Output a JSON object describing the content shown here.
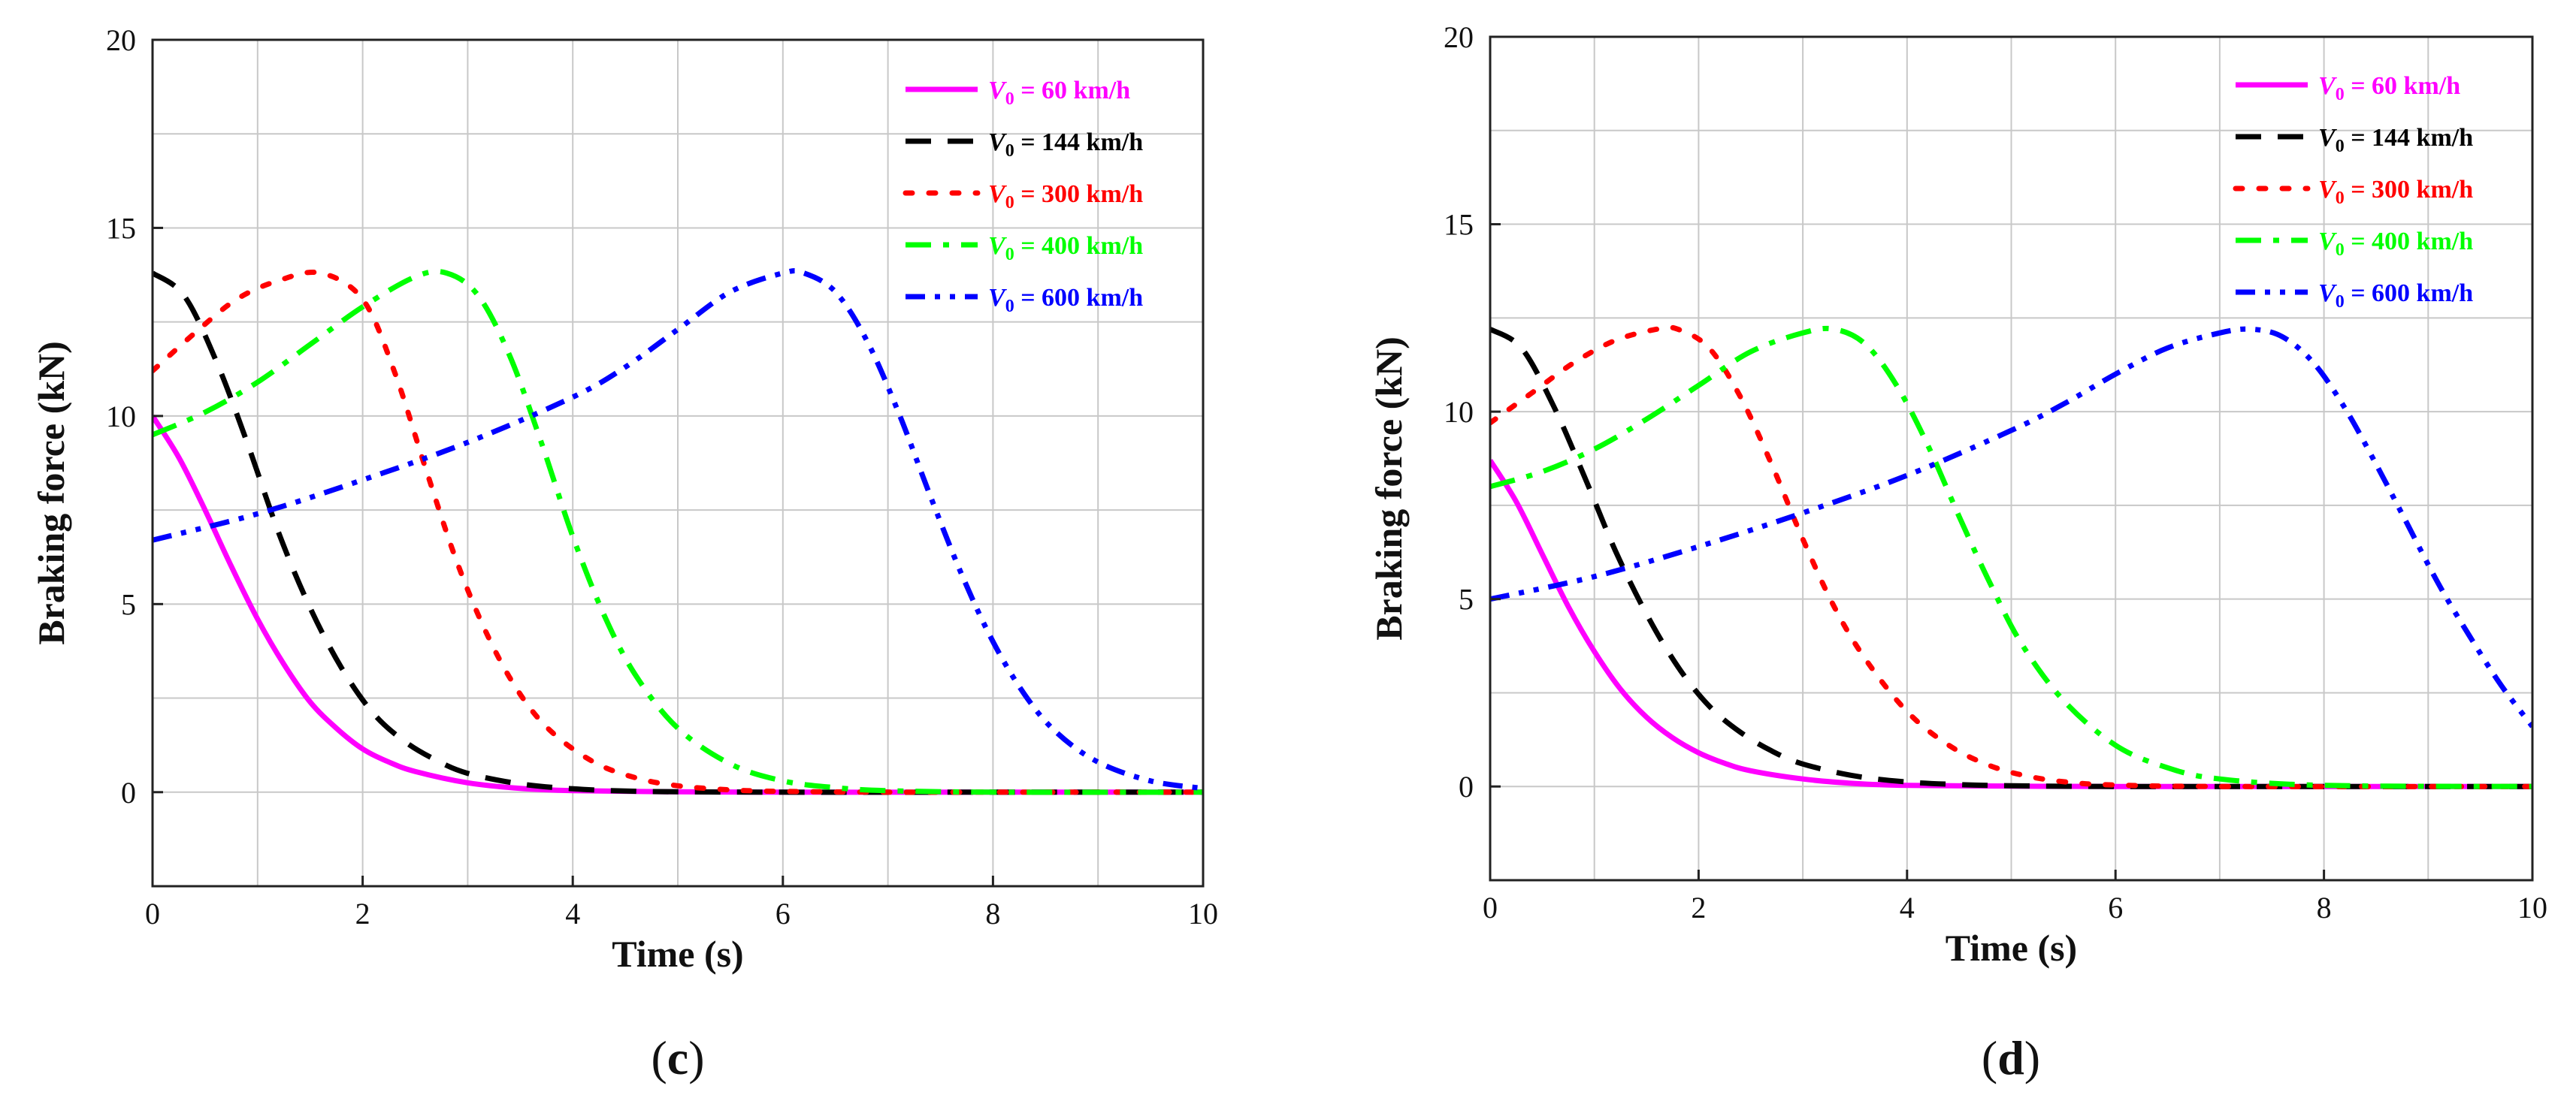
{
  "chart_data": [
    {
      "type": "line",
      "panel_label": "(c)",
      "xlabel": "Time (s)",
      "ylabel": "Braking force (kN)",
      "xlim": [
        0,
        10
      ],
      "ylim": [
        -2.5,
        20
      ],
      "xticks": [
        0,
        2,
        4,
        6,
        8,
        10
      ],
      "yticks": [
        0,
        5,
        10,
        15,
        20
      ],
      "grid": true,
      "legend_position": "top-right",
      "series": [
        {
          "name": "V0 = 60 km/h",
          "v_sym": "V",
          "v_sub": "0",
          "v_rest": " = 60 km/h",
          "color": "#ff00ff",
          "dash": "solid",
          "x": [
            0,
            0.25,
            0.5,
            0.75,
            1.0,
            1.25,
            1.5,
            1.75,
            2.0,
            2.25,
            2.5,
            3.0,
            3.5,
            4.0,
            5.0,
            6.0,
            8.0,
            10.0
          ],
          "y": [
            10.0,
            8.9,
            7.5,
            6.0,
            4.6,
            3.4,
            2.4,
            1.7,
            1.15,
            0.8,
            0.55,
            0.25,
            0.1,
            0.04,
            0.01,
            0,
            0,
            0
          ]
        },
        {
          "name": "V0 = 144 km/h",
          "v_sym": "V",
          "v_sub": "0",
          "v_rest": " = 144 km/h",
          "color": "#000000",
          "dash": "dash",
          "x": [
            0,
            0.3,
            0.6,
            0.9,
            1.2,
            1.5,
            1.8,
            2.1,
            2.4,
            2.7,
            3.0,
            3.5,
            4.0,
            4.5,
            5.0,
            6.0,
            8.0,
            10.0
          ],
          "y": [
            13.8,
            13.2,
            11.5,
            9.3,
            6.9,
            4.9,
            3.3,
            2.1,
            1.35,
            0.85,
            0.5,
            0.22,
            0.09,
            0.03,
            0.01,
            0,
            0,
            0
          ]
        },
        {
          "name": "V0 = 300 km/h",
          "v_sym": "V",
          "v_sub": "0",
          "v_rest": " = 300 km/h",
          "color": "#ff0000",
          "dash": "dot",
          "x": [
            0,
            0.4,
            0.8,
            1.2,
            1.6,
            2.0,
            2.3,
            2.6,
            2.9,
            3.2,
            3.5,
            3.8,
            4.2,
            4.6,
            5.0,
            5.5,
            6.0,
            7.0,
            8.0,
            10.0
          ],
          "y": [
            11.2,
            12.2,
            13.1,
            13.6,
            13.8,
            13.1,
            11.2,
            8.6,
            6.1,
            4.1,
            2.6,
            1.6,
            0.8,
            0.38,
            0.17,
            0.06,
            0.02,
            0,
            0,
            0
          ]
        },
        {
          "name": "V0 = 400 km/h",
          "v_sym": "V",
          "v_sub": "0",
          "v_rest": " = 400 km/h",
          "color": "#00ff00",
          "dash": "dashdot",
          "x": [
            0,
            0.5,
            1.0,
            1.5,
            2.0,
            2.5,
            2.8,
            3.1,
            3.4,
            3.7,
            4.0,
            4.3,
            4.6,
            5.0,
            5.5,
            6.0,
            6.5,
            7.0,
            8.0,
            10.0
          ],
          "y": [
            9.5,
            10.1,
            10.9,
            11.9,
            12.9,
            13.7,
            13.8,
            13.2,
            11.6,
            9.3,
            6.8,
            4.7,
            3.1,
            1.7,
            0.75,
            0.3,
            0.12,
            0.04,
            0,
            0
          ]
        },
        {
          "name": "V0 = 600 km/h",
          "v_sym": "V",
          "v_sub": "0",
          "v_rest": " = 600 km/h",
          "color": "#0000ff",
          "dash": "dashdotdot",
          "x": [
            0,
            1.0,
            2.0,
            3.0,
            4.0,
            4.5,
            5.0,
            5.5,
            6.0,
            6.2,
            6.5,
            6.8,
            7.1,
            7.4,
            7.7,
            8.0,
            8.3,
            8.6,
            9.0,
            9.5,
            10.0
          ],
          "y": [
            6.7,
            7.4,
            8.3,
            9.3,
            10.5,
            11.3,
            12.3,
            13.3,
            13.8,
            13.8,
            13.3,
            12.0,
            10.1,
            7.9,
            5.8,
            4.0,
            2.6,
            1.6,
            0.8,
            0.3,
            0.1
          ]
        }
      ]
    },
    {
      "type": "line",
      "panel_label": "(d)",
      "xlabel": "Time (s)",
      "ylabel": "Braking force (kN)",
      "xlim": [
        0,
        10
      ],
      "ylim": [
        -2.5,
        20
      ],
      "xticks": [
        0,
        2,
        4,
        6,
        8,
        10
      ],
      "yticks": [
        0,
        5,
        10,
        15,
        20
      ],
      "grid": true,
      "legend_position": "top-right",
      "series": [
        {
          "name": "V0 = 60 km/h",
          "v_sym": "V",
          "v_sub": "0",
          "v_rest": " = 60 km/h",
          "color": "#ff00ff",
          "dash": "solid",
          "x": [
            0,
            0.25,
            0.5,
            0.75,
            1.0,
            1.25,
            1.5,
            1.75,
            2.0,
            2.25,
            2.5,
            3.0,
            3.5,
            4.0,
            5.0,
            6.0,
            8.0,
            10.0
          ],
          "y": [
            8.7,
            7.6,
            6.2,
            4.8,
            3.6,
            2.6,
            1.85,
            1.3,
            0.9,
            0.62,
            0.42,
            0.2,
            0.08,
            0.03,
            0.01,
            0,
            0,
            0
          ]
        },
        {
          "name": "V0 = 144 km/h",
          "v_sym": "V",
          "v_sub": "0",
          "v_rest": " = 144 km/h",
          "color": "#000000",
          "dash": "dash",
          "x": [
            0,
            0.3,
            0.6,
            0.9,
            1.2,
            1.5,
            1.8,
            2.1,
            2.4,
            2.7,
            3.0,
            3.5,
            4.0,
            4.5,
            5.0,
            6.0,
            8.0,
            10.0
          ],
          "y": [
            12.2,
            11.7,
            10.2,
            8.3,
            6.3,
            4.6,
            3.2,
            2.15,
            1.45,
            0.95,
            0.6,
            0.28,
            0.12,
            0.05,
            0.02,
            0,
            0,
            0
          ]
        },
        {
          "name": "V0 = 300 km/h",
          "v_sym": "V",
          "v_sub": "0",
          "v_rest": " = 300 km/h",
          "color": "#ff0000",
          "dash": "dot",
          "x": [
            0,
            0.4,
            0.8,
            1.2,
            1.6,
            1.8,
            2.1,
            2.4,
            2.7,
            3.0,
            3.3,
            3.6,
            4.0,
            4.4,
            4.8,
            5.2,
            5.6,
            6.0,
            7.0,
            10.0
          ],
          "y": [
            9.7,
            10.5,
            11.3,
            11.9,
            12.2,
            12.2,
            11.7,
            10.4,
            8.6,
            6.6,
            4.8,
            3.4,
            2.0,
            1.1,
            0.55,
            0.25,
            0.1,
            0.04,
            0,
            0
          ]
        },
        {
          "name": "V0 = 400 km/h",
          "v_sym": "V",
          "v_sub": "0",
          "v_rest": " = 400 km/h",
          "color": "#00ff00",
          "dash": "dashdot",
          "x": [
            0,
            0.5,
            1.0,
            1.5,
            2.0,
            2.5,
            3.0,
            3.3,
            3.6,
            3.9,
            4.2,
            4.5,
            4.8,
            5.1,
            5.5,
            6.0,
            6.5,
            7.0,
            8.0,
            10.0
          ],
          "y": [
            8.0,
            8.4,
            9.0,
            9.8,
            10.7,
            11.6,
            12.1,
            12.2,
            11.8,
            10.7,
            9.1,
            7.2,
            5.4,
            3.8,
            2.3,
            1.1,
            0.5,
            0.2,
            0.03,
            0
          ]
        },
        {
          "name": "V0 = 600 km/h",
          "v_sym": "V",
          "v_sub": "0",
          "v_rest": " = 600 km/h",
          "color": "#0000ff",
          "dash": "dashdotdot",
          "x": [
            0,
            1.0,
            2.0,
            3.0,
            4.0,
            5.0,
            5.5,
            6.0,
            6.5,
            7.0,
            7.3,
            7.6,
            7.9,
            8.2,
            8.5,
            8.8,
            9.1,
            9.4,
            9.7,
            10.0
          ],
          "y": [
            5.0,
            5.6,
            6.4,
            7.3,
            8.3,
            9.5,
            10.2,
            11.0,
            11.7,
            12.1,
            12.2,
            12.0,
            11.3,
            10.1,
            8.6,
            7.0,
            5.4,
            4.0,
            2.7,
            1.6
          ]
        }
      ]
    }
  ]
}
